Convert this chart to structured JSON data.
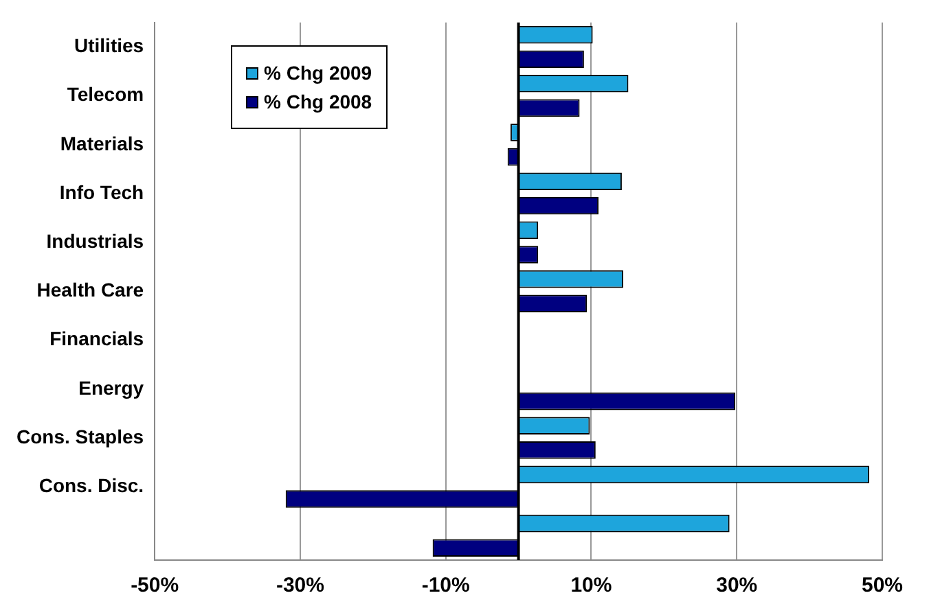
{
  "chart_data": {
    "type": "bar",
    "orientation": "horizontal",
    "categories": [
      "Utilities",
      "Telecom",
      "Materials",
      "Info Tech",
      "Industrials",
      "Health Care",
      "Financials",
      "Energy",
      "Cons. Staples",
      "Cons. Disc.",
      null
    ],
    "series": [
      {
        "name": "% Chg 2009",
        "color": "#1ea5dc",
        "values": [
          10.2,
          15.1,
          -1.1,
          14.2,
          2.7,
          14.4,
          null,
          null,
          9.8,
          48.2,
          29.0
        ]
      },
      {
        "name": "% Chg 2008",
        "color": "#000080",
        "values": [
          9.0,
          8.4,
          -1.5,
          11.0,
          2.7,
          9.4,
          null,
          29.8,
          10.6,
          -32.0,
          -11.8
        ]
      }
    ],
    "xlim": [
      -50,
      50
    ],
    "xticks": [
      {
        "value": -50,
        "label": "-50%"
      },
      {
        "value": -30,
        "label": "-30%"
      },
      {
        "value": -10,
        "label": "-10%"
      },
      {
        "value": 10,
        "label": "10%"
      },
      {
        "value": 30,
        "label": "30%"
      },
      {
        "value": 50,
        "label": "50%"
      }
    ],
    "ref_lines": [
      {
        "axis": "x",
        "value": 0,
        "color": "#000000"
      }
    ],
    "grid": "x",
    "legend": "top left"
  }
}
